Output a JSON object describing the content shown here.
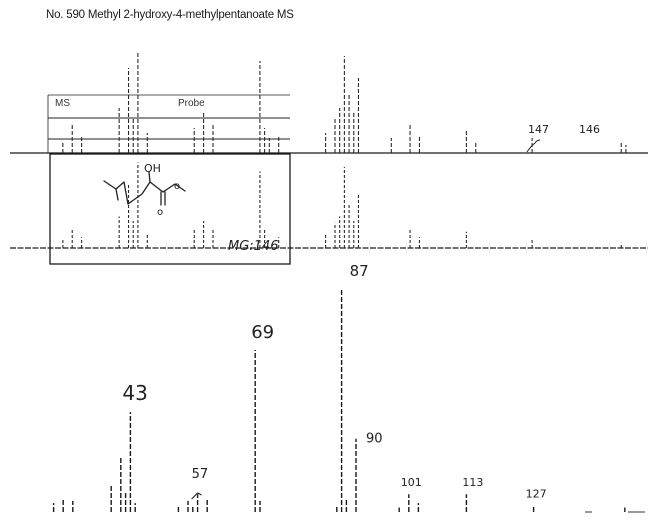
{
  "title": "No. 590 Methyl 2-hydroxy-4-methylpentanoate MS",
  "colors": {
    "ink": "#1a1a1a",
    "faint_ink": "#444444",
    "background": "#ffffff"
  },
  "overview_panels": {
    "ms_label": "MS",
    "probe_label": "Probe",
    "upper_trace_labels": [
      "147",
      "146"
    ],
    "molecular_weight_note": "MG:146",
    "structure_label": "OH"
  },
  "chart_data": {
    "type": "bar",
    "title": "No. 590 Methyl 2-hydroxy-4-methylpentanoate MS",
    "xlabel": "",
    "ylabel": "",
    "xlim": [
      20,
      150
    ],
    "ylim": [
      0,
      100
    ],
    "grid": false,
    "peak_labels": [
      "43",
      "57",
      "69",
      "87",
      "90",
      "101",
      "113",
      "127"
    ],
    "peaks": [
      {
        "mz": 27,
        "intensity": 4
      },
      {
        "mz": 29,
        "intensity": 6
      },
      {
        "mz": 31,
        "intensity": 5
      },
      {
        "mz": 39,
        "intensity": 12
      },
      {
        "mz": 41,
        "intensity": 25
      },
      {
        "mz": 42,
        "intensity": 9
      },
      {
        "mz": 43,
        "intensity": 45
      },
      {
        "mz": 44,
        "intensity": 4
      },
      {
        "mz": 53,
        "intensity": 3
      },
      {
        "mz": 55,
        "intensity": 5
      },
      {
        "mz": 56,
        "intensity": 3
      },
      {
        "mz": 57,
        "intensity": 8
      },
      {
        "mz": 59,
        "intensity": 6
      },
      {
        "mz": 69,
        "intensity": 73
      },
      {
        "mz": 70,
        "intensity": 5
      },
      {
        "mz": 86,
        "intensity": 3
      },
      {
        "mz": 87,
        "intensity": 100
      },
      {
        "mz": 88,
        "intensity": 6
      },
      {
        "mz": 90,
        "intensity": 33
      },
      {
        "mz": 99,
        "intensity": 2
      },
      {
        "mz": 101,
        "intensity": 8
      },
      {
        "mz": 103,
        "intensity": 4
      },
      {
        "mz": 113,
        "intensity": 8
      },
      {
        "mz": 127,
        "intensity": 3
      },
      {
        "mz": 146,
        "intensity": 2
      }
    ],
    "overview_top_traces": [
      {
        "mz": 27,
        "intensity": 12
      },
      {
        "mz": 29,
        "intensity": 28
      },
      {
        "mz": 31,
        "intensity": 18
      },
      {
        "mz": 39,
        "intensity": 45
      },
      {
        "mz": 41,
        "intensity": 85
      },
      {
        "mz": 42,
        "intensity": 35
      },
      {
        "mz": 43,
        "intensity": 100
      },
      {
        "mz": 45,
        "intensity": 20
      },
      {
        "mz": 55,
        "intensity": 25
      },
      {
        "mz": 57,
        "intensity": 40
      },
      {
        "mz": 59,
        "intensity": 30
      },
      {
        "mz": 69,
        "intensity": 92
      },
      {
        "mz": 70,
        "intensity": 25
      },
      {
        "mz": 71,
        "intensity": 15
      },
      {
        "mz": 73,
        "intensity": 18
      },
      {
        "mz": 83,
        "intensity": 20
      },
      {
        "mz": 85,
        "intensity": 35
      },
      {
        "mz": 86,
        "intensity": 45
      },
      {
        "mz": 87,
        "intensity": 97
      },
      {
        "mz": 88,
        "intensity": 60
      },
      {
        "mz": 89,
        "intensity": 40
      },
      {
        "mz": 90,
        "intensity": 75
      },
      {
        "mz": 97,
        "intensity": 15
      },
      {
        "mz": 101,
        "intensity": 30
      },
      {
        "mz": 103,
        "intensity": 18
      },
      {
        "mz": 113,
        "intensity": 22
      },
      {
        "mz": 115,
        "intensity": 12
      },
      {
        "mz": 127,
        "intensity": 15
      },
      {
        "mz": 147,
        "intensity": 8
      },
      {
        "mz": 146,
        "intensity": 12
      }
    ],
    "overview_bottom_traces": [
      {
        "mz": 27,
        "intensity": 10
      },
      {
        "mz": 29,
        "intensity": 20
      },
      {
        "mz": 31,
        "intensity": 12
      },
      {
        "mz": 39,
        "intensity": 35
      },
      {
        "mz": 41,
        "intensity": 70
      },
      {
        "mz": 42,
        "intensity": 30
      },
      {
        "mz": 43,
        "intensity": 95
      },
      {
        "mz": 45,
        "intensity": 15
      },
      {
        "mz": 55,
        "intensity": 20
      },
      {
        "mz": 57,
        "intensity": 30
      },
      {
        "mz": 59,
        "intensity": 22
      },
      {
        "mz": 69,
        "intensity": 85
      },
      {
        "mz": 70,
        "intensity": 20
      },
      {
        "mz": 73,
        "intensity": 12
      },
      {
        "mz": 83,
        "intensity": 15
      },
      {
        "mz": 85,
        "intensity": 28
      },
      {
        "mz": 86,
        "intensity": 35
      },
      {
        "mz": 87,
        "intensity": 90
      },
      {
        "mz": 88,
        "intensity": 50
      },
      {
        "mz": 89,
        "intensity": 30
      },
      {
        "mz": 90,
        "intensity": 60
      },
      {
        "mz": 101,
        "intensity": 22
      },
      {
        "mz": 103,
        "intensity": 12
      },
      {
        "mz": 113,
        "intensity": 18
      },
      {
        "mz": 127,
        "intensity": 10
      },
      {
        "mz": 146,
        "intensity": 6
      }
    ]
  }
}
